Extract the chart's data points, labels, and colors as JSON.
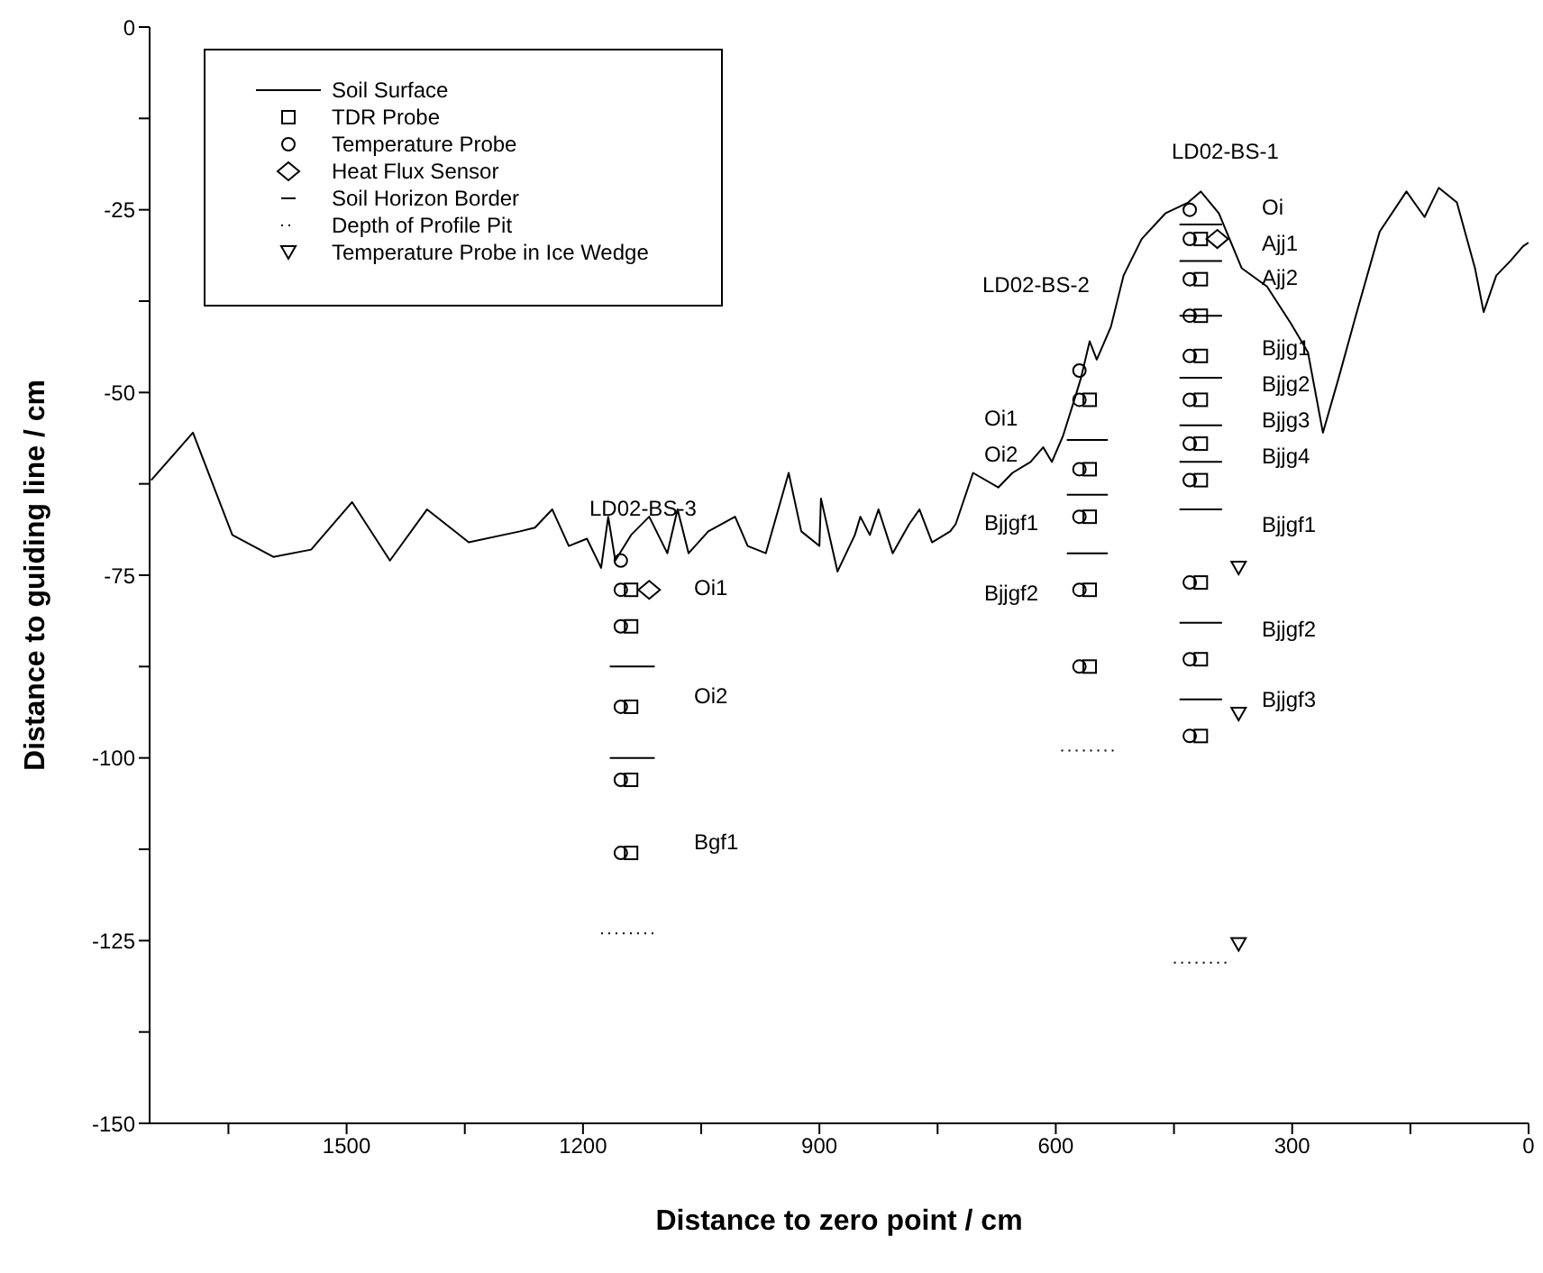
{
  "chart_data": {
    "type": "scatter",
    "xlabel": "Distance to zero point / cm",
    "ylabel": "Distance to guiding line / cm",
    "xlim": [
      1750,
      0
    ],
    "xticks": [
      {
        "value": 1650,
        "label": null
      },
      1500,
      {
        "value": 1350,
        "label": null
      },
      1200,
      {
        "value": 1050,
        "label": null
      },
      900,
      {
        "value": 750,
        "label": null
      },
      600,
      {
        "value": 450,
        "label": null
      },
      300,
      {
        "value": 150,
        "label": null
      },
      0
    ],
    "ylim": [
      -150,
      0
    ],
    "yticks": [
      -150,
      {
        "value": -137.5,
        "label": null
      },
      -125,
      {
        "value": -112.5,
        "label": null
      },
      -100,
      {
        "value": -87.5,
        "label": null
      },
      -75,
      {
        "value": -62.5,
        "label": null
      },
      -50,
      {
        "value": -37.5,
        "label": null
      },
      -25,
      {
        "value": -12.5,
        "label": null
      },
      0
    ],
    "legend": "top left",
    "series": [
      {
        "name": "Soil Surface",
        "type": "line",
        "color": "#000000",
        "marker": "none",
        "line_style": "solid",
        "x": [
          1748,
          1695,
          1645,
          1593,
          1545,
          1493,
          1445,
          1398,
          1345,
          1280,
          1261,
          1239,
          1218,
          1195,
          1177,
          1168,
          1159,
          1139,
          1116,
          1093,
          1080,
          1066,
          1041,
          1007,
          991,
          968,
          939,
          923,
          900,
          898,
          877,
          855,
          848,
          836,
          825,
          807,
          786,
          773,
          757,
          734,
          727,
          705,
          673,
          655,
          632,
          616,
          605,
          591,
          575,
          568,
          557,
          548,
          530,
          514,
          491,
          461,
          432,
          416,
          393,
          364,
          332,
          302,
          280,
          261,
          241,
          218,
          189,
          155,
          132,
          114,
          91,
          68,
          57,
          41,
          23,
          7,
          0
        ],
        "values": [
          -62,
          -55.5,
          -69.5,
          -72.5,
          -71.5,
          -65,
          -73,
          -66,
          -70.5,
          -69,
          -68.5,
          -66,
          -71,
          -70,
          -74,
          -67,
          -73,
          -69.5,
          -67,
          -72,
          -66,
          -72,
          -69,
          -67,
          -71,
          -72,
          -61,
          -69,
          -71,
          -64.5,
          -74.5,
          -69.5,
          -67,
          -69.5,
          -66,
          -72,
          -68,
          -66,
          -70.5,
          -69,
          -68,
          -61,
          -63,
          -61,
          -59.5,
          -57.5,
          -59.5,
          -56,
          -50.5,
          -48,
          -43,
          -45.5,
          -41,
          -34,
          -29,
          -25.5,
          -24,
          -22.5,
          -25.5,
          -33,
          -35.5,
          -40.5,
          -44.5,
          -55.5,
          -48,
          -39,
          -28,
          -22.5,
          -26,
          -22,
          -24,
          -33,
          -39,
          -34,
          -32,
          -30,
          -29.5
        ]
      },
      {
        "name": "TDR Probe",
        "color": "#000000",
        "marker": "square",
        "x": [
          1139,
          1139,
          1139,
          1139,
          1139,
          557,
          557,
          557,
          557,
          557,
          416,
          416,
          416,
          416,
          416,
          416,
          416,
          416,
          416,
          416
        ],
        "values": [
          -77,
          -82,
          -93,
          -103,
          -113,
          -51,
          -60.5,
          -67,
          -77,
          -87.5,
          -29,
          -34.5,
          -39.5,
          -45,
          -51,
          -57,
          -62,
          -76,
          -86.5,
          -97
        ]
      },
      {
        "name": "Temperature Probe",
        "color": "#000000",
        "marker": "circle",
        "x": [
          1152,
          1152,
          1152,
          1152,
          1152,
          1152,
          570,
          570,
          570,
          570,
          570,
          570,
          430,
          430,
          430,
          430,
          430,
          430,
          430,
          430,
          430,
          430,
          430
        ],
        "values": [
          -73,
          -77,
          -82,
          -93,
          -103,
          -113,
          -47,
          -51,
          -60.5,
          -67,
          -77,
          -87.5,
          -25,
          -29,
          -34.5,
          -39.5,
          -45,
          -51,
          -57,
          -62,
          -76,
          -86.5,
          -97
        ]
      },
      {
        "name": "Heat Flux Sensor",
        "color": "#000000",
        "marker": "diamond",
        "x": [
          1116,
          395
        ],
        "values": [
          -77,
          -29
        ]
      },
      {
        "name": "Soil Horizon Border",
        "type": "line",
        "color": "#000000",
        "marker": "none",
        "line_style": "solid",
        "x": [
          1166,
          1109
        ],
        "values": [
          -87.5,
          -87.5
        ]
      },
      {
        "name": "Depth of Profile Pit",
        "type": "line",
        "color": "#000000",
        "marker": "none",
        "line_style": "dotted",
        "x": [
          1177,
          1109
        ],
        "values": [
          -124,
          -124
        ]
      },
      {
        "name": "Temperature Probe in Ice Wedge",
        "color": "#000000",
        "marker": "triangle",
        "x": [
          368,
          368,
          368
        ],
        "values": [
          -74,
          -94,
          -125.5
        ]
      },
      {
        "type": "line",
        "color": "#000000",
        "marker": "none",
        "line_style": "solid",
        "x": [
          1166,
          1109
        ],
        "values": [
          -100,
          -100
        ]
      },
      {
        "type": "line",
        "color": "#000000",
        "marker": "none",
        "line_style": "solid",
        "x": [
          586,
          534
        ],
        "values": [
          -56.5,
          -56.5
        ]
      },
      {
        "type": "line",
        "color": "#000000",
        "marker": "none",
        "line_style": "solid",
        "x": [
          586,
          534
        ],
        "values": [
          -64,
          -64
        ]
      },
      {
        "type": "line",
        "color": "#000000",
        "marker": "none",
        "line_style": "solid",
        "x": [
          586,
          534
        ],
        "values": [
          -72,
          -72
        ]
      },
      {
        "type": "line",
        "color": "#000000",
        "marker": "none",
        "line_style": "solid",
        "x": [
          443,
          389
        ],
        "values": [
          -27,
          -27
        ]
      },
      {
        "type": "line",
        "color": "#000000",
        "marker": "none",
        "line_style": "solid",
        "x": [
          443,
          389
        ],
        "values": [
          -32,
          -32
        ]
      },
      {
        "type": "line",
        "color": "#000000",
        "marker": "none",
        "line_style": "solid",
        "x": [
          443,
          389
        ],
        "values": [
          -39.5,
          -39.5
        ]
      },
      {
        "type": "line",
        "color": "#000000",
        "marker": "none",
        "line_style": "solid",
        "x": [
          443,
          389
        ],
        "values": [
          -48,
          -48
        ]
      },
      {
        "type": "line",
        "color": "#000000",
        "marker": "none",
        "line_style": "solid",
        "x": [
          443,
          389
        ],
        "values": [
          -54.5,
          -54.5
        ]
      },
      {
        "type": "line",
        "color": "#000000",
        "marker": "none",
        "line_style": "solid",
        "x": [
          443,
          389
        ],
        "values": [
          -59.5,
          -59.5
        ]
      },
      {
        "type": "line",
        "color": "#000000",
        "marker": "none",
        "line_style": "solid",
        "x": [
          443,
          389
        ],
        "values": [
          -66,
          -66
        ]
      },
      {
        "type": "line",
        "color": "#000000",
        "marker": "none",
        "line_style": "solid",
        "x": [
          443,
          389
        ],
        "values": [
          -81.5,
          -81.5
        ]
      },
      {
        "type": "line",
        "color": "#000000",
        "marker": "none",
        "line_style": "solid",
        "x": [
          443,
          389
        ],
        "values": [
          -92,
          -92
        ]
      },
      {
        "type": "line",
        "color": "#000000",
        "marker": "none",
        "line_style": "dotted",
        "x": [
          593,
          523
        ],
        "values": [
          -99,
          -99
        ]
      },
      {
        "type": "line",
        "color": "#000000",
        "marker": "none",
        "line_style": "dotted",
        "x": [
          450,
          377
        ],
        "values": [
          -128,
          -128
        ]
      }
    ],
    "annotations": [
      "LD02-BS-3",
      "Oi1",
      "Oi2",
      "Bgf1",
      "LD02-BS-2",
      "Oi1",
      "Oi2",
      "Bjjgf1",
      "Bjjgf2",
      "LD02-BS-1",
      "Oi",
      "Ajj1",
      "Ajj2",
      "Bjjg1",
      "Bjjg2",
      "Bjjg3",
      "Bjjg4",
      "Bjjgf1",
      "Bjjgf2",
      "Bjjgf3"
    ]
  }
}
